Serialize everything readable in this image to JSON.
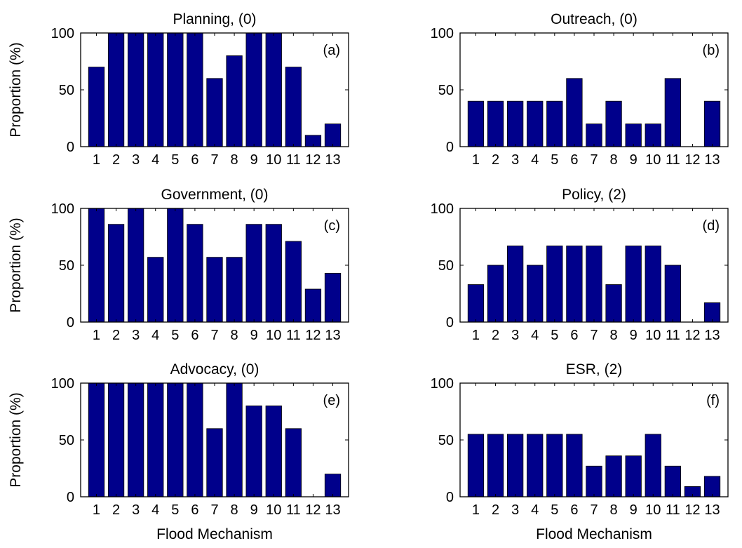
{
  "colors": {
    "bar": "#00008B",
    "axis": "#000000"
  },
  "xlabel_text": "Flood Mechanism",
  "ylabel_text": "Proportion (%)",
  "chart_data": [
    {
      "type": "bar",
      "title": "Planning, (0)",
      "panel_label": "(a)",
      "categories": [
        "1",
        "2",
        "3",
        "4",
        "5",
        "6",
        "7",
        "8",
        "9",
        "10",
        "11",
        "12",
        "13"
      ],
      "values": [
        70,
        100,
        100,
        100,
        100,
        100,
        60,
        80,
        100,
        100,
        70,
        10,
        20
      ],
      "ylabel": "Proportion (%)",
      "xlabel": "",
      "ylim": [
        0,
        100
      ],
      "yticks": [
        0,
        50,
        100
      ]
    },
    {
      "type": "bar",
      "title": "Outreach, (0)",
      "panel_label": "(b)",
      "categories": [
        "1",
        "2",
        "3",
        "4",
        "5",
        "6",
        "7",
        "8",
        "9",
        "10",
        "11",
        "12",
        "13"
      ],
      "values": [
        40,
        40,
        40,
        40,
        40,
        60,
        20,
        40,
        20,
        20,
        60,
        0,
        40
      ],
      "ylabel": "",
      "xlabel": "",
      "ylim": [
        0,
        100
      ],
      "yticks": [
        0,
        50,
        100
      ]
    },
    {
      "type": "bar",
      "title": "Government, (0)",
      "panel_label": "(c)",
      "categories": [
        "1",
        "2",
        "3",
        "4",
        "5",
        "6",
        "7",
        "8",
        "9",
        "10",
        "11",
        "12",
        "13"
      ],
      "values": [
        100,
        86,
        100,
        57,
        100,
        86,
        57,
        57,
        86,
        86,
        71,
        29,
        43
      ],
      "ylabel": "Proportion (%)",
      "xlabel": "",
      "ylim": [
        0,
        100
      ],
      "yticks": [
        0,
        50,
        100
      ]
    },
    {
      "type": "bar",
      "title": "Policy, (2)",
      "panel_label": "(d)",
      "categories": [
        "1",
        "2",
        "3",
        "4",
        "5",
        "6",
        "7",
        "8",
        "9",
        "10",
        "11",
        "12",
        "13"
      ],
      "values": [
        33,
        50,
        67,
        50,
        67,
        67,
        67,
        33,
        67,
        67,
        50,
        0,
        17
      ],
      "ylabel": "",
      "xlabel": "",
      "ylim": [
        0,
        100
      ],
      "yticks": [
        0,
        50,
        100
      ]
    },
    {
      "type": "bar",
      "title": "Advocacy, (0)",
      "panel_label": "(e)",
      "categories": [
        "1",
        "2",
        "3",
        "4",
        "5",
        "6",
        "7",
        "8",
        "9",
        "10",
        "11",
        "12",
        "13"
      ],
      "values": [
        100,
        100,
        100,
        100,
        100,
        100,
        60,
        100,
        80,
        80,
        60,
        0,
        20
      ],
      "ylabel": "Proportion (%)",
      "xlabel": "Flood Mechanism",
      "ylim": [
        0,
        100
      ],
      "yticks": [
        0,
        50,
        100
      ]
    },
    {
      "type": "bar",
      "title": "ESR, (2)",
      "panel_label": "(f)",
      "categories": [
        "1",
        "2",
        "3",
        "4",
        "5",
        "6",
        "7",
        "8",
        "9",
        "10",
        "11",
        "12",
        "13"
      ],
      "values": [
        55,
        55,
        55,
        55,
        55,
        55,
        27,
        36,
        36,
        55,
        27,
        9,
        18
      ],
      "ylabel": "",
      "xlabel": "Flood Mechanism",
      "ylim": [
        0,
        100
      ],
      "yticks": [
        0,
        50,
        100
      ]
    }
  ]
}
